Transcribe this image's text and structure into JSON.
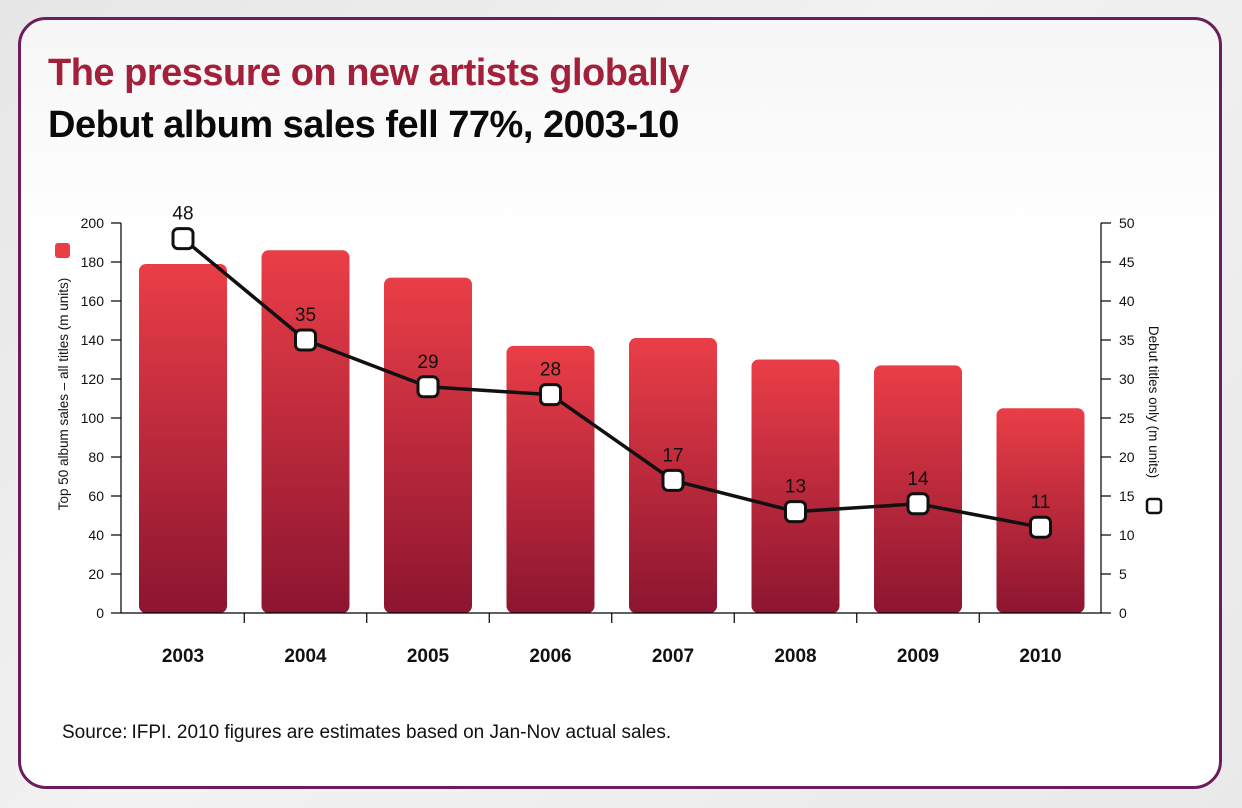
{
  "header": {
    "title": "The pressure on new artists globally",
    "subtitle": "Debut album sales fell 77%, 2003-10"
  },
  "footer": {
    "source_label": "Source:",
    "source_text": "IFPI. 2010 figures are estimates based on Jan-Nov actual sales."
  },
  "colors": {
    "bar_top": "#ea3e47",
    "bar_bottom": "#8c1530",
    "title": "#a3203a",
    "border": "#6b1d5c",
    "line": "#111111"
  },
  "chart_data": {
    "type": "bar",
    "categories": [
      "2003",
      "2004",
      "2005",
      "2006",
      "2007",
      "2008",
      "2009",
      "2010"
    ],
    "series": [
      {
        "name": "Top 50 album sales – all titles (m units)",
        "type": "bar",
        "axis": "left",
        "values": [
          179,
          186,
          172,
          137,
          141,
          130,
          127,
          105
        ]
      },
      {
        "name": "Debut titles only (m units)",
        "type": "line",
        "axis": "right",
        "values": [
          48,
          35,
          29,
          28,
          17,
          13,
          14,
          11
        ],
        "data_labels": [
          "48",
          "35",
          "29",
          "28",
          "17",
          "13",
          "14",
          "11"
        ]
      }
    ],
    "y_left": {
      "label": "Top 50 album sales – all titles (m units)",
      "range": [
        0,
        200
      ],
      "ticks": [
        "0",
        "20",
        "40",
        "60",
        "80",
        "100",
        "120",
        "140",
        "160",
        "180",
        "200"
      ]
    },
    "y_right": {
      "label": "Debut titles only (m units)",
      "range": [
        0,
        50
      ],
      "ticks": [
        "0",
        "5",
        "10",
        "15",
        "20",
        "25",
        "30",
        "35",
        "40",
        "45",
        "50"
      ]
    },
    "grid": false,
    "legend": "axis labels with swatches"
  }
}
